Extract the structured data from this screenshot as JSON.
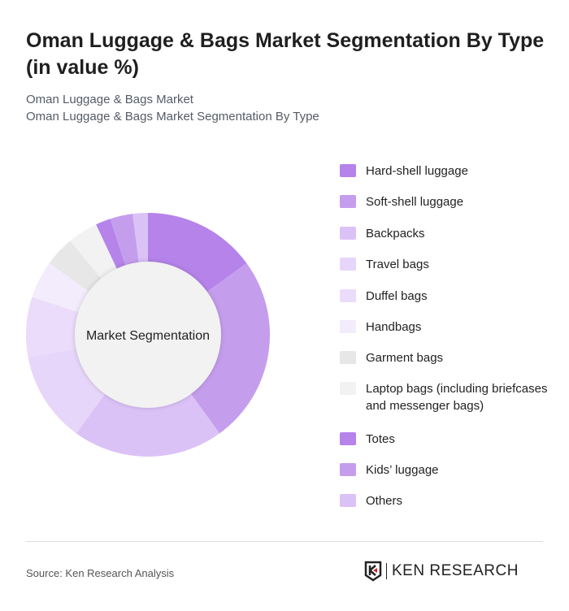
{
  "title": "Oman Luggage & Bags Market Segmentation By Type (in value %)",
  "subtitle1": "Oman Luggage & Bags Market",
  "subtitle2": "Oman Luggage & Bags Market Segmentation By Type",
  "source": "Source: Ken Research Analysis",
  "logo_text": "KEN RESEARCH",
  "chart_data": {
    "type": "pie",
    "variant": "donut",
    "center_label": "Market Segmentation",
    "legend_position": "right",
    "slices": [
      {
        "label": "Hard-shell luggage",
        "value": 15,
        "color": "#b583ea"
      },
      {
        "label": "Soft-shell luggage",
        "value": 25,
        "color": "#c59ded"
      },
      {
        "label": "Backpacks",
        "value": 20,
        "color": "#dbc2f6"
      },
      {
        "label": "Travel bags",
        "value": 12,
        "color": "#e6d6f9"
      },
      {
        "label": "Duffel bags",
        "value": 8,
        "color": "#eadcfa"
      },
      {
        "label": "Handbags",
        "value": 5,
        "color": "#f3ecfc"
      },
      {
        "label": "Garment bags",
        "value": 4,
        "color": "#e7e7e7"
      },
      {
        "label": "Laptop bags (including briefcases and messenger bags)",
        "value": 4,
        "color": "#f2f2f2"
      },
      {
        "label": "Totes",
        "value": 2,
        "color": "#b583ea"
      },
      {
        "label": "Kids’ luggage",
        "value": 3,
        "color": "#c59ded"
      },
      {
        "label": "Others",
        "value": 2,
        "color": "#dbc2f6"
      }
    ]
  }
}
